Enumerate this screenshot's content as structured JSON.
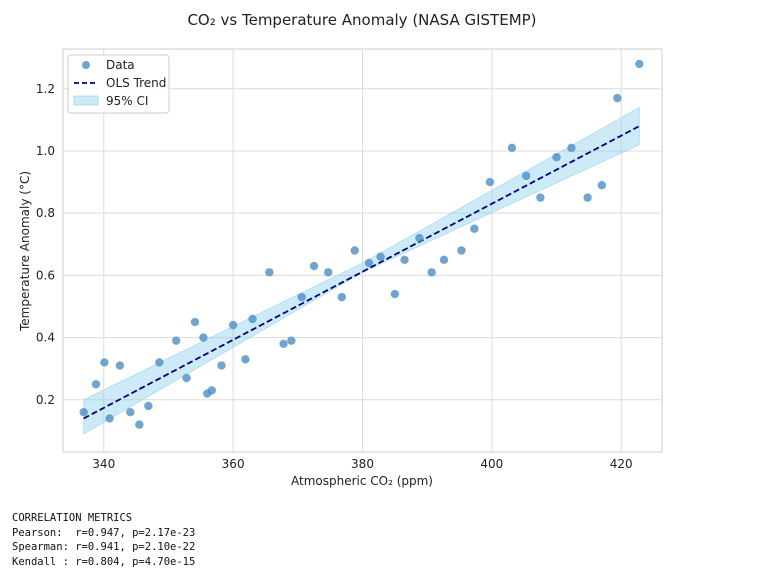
{
  "chart_data": {
    "type": "scatter",
    "title": "CO₂ vs Temperature Anomaly (NASA GISTEMP)",
    "xlabel": "Atmospheric CO₂ (ppm)",
    "ylabel": "Temperature Anomaly (°C)",
    "xlim": [
      333.7,
      426.3
    ],
    "ylim": [
      0.032,
      1.328
    ],
    "xticks": [
      340,
      360,
      380,
      400,
      420
    ],
    "yticks": [
      0.2,
      0.4,
      0.6,
      0.8,
      1.0,
      1.2
    ],
    "grid": true,
    "legend_position": "top-left",
    "series": [
      {
        "name": "Data",
        "color": "#4c8fc4",
        "x": [
          336.9,
          338.8,
          340.1,
          340.9,
          342.5,
          344.1,
          345.5,
          346.9,
          348.6,
          351.2,
          352.8,
          354.1,
          355.4,
          356.0,
          356.7,
          358.2,
          360.0,
          361.9,
          363.0,
          365.6,
          367.8,
          369.0,
          370.6,
          372.5,
          374.7,
          376.8,
          378.8,
          381.0,
          382.8,
          385.0,
          386.5,
          388.8,
          390.7,
          392.6,
          395.3,
          397.3,
          399.7,
          403.1,
          405.3,
          407.5,
          410.0,
          412.3,
          414.8,
          417.0,
          419.4,
          422.8
        ],
        "y": [
          0.16,
          0.25,
          0.32,
          0.14,
          0.31,
          0.16,
          0.12,
          0.18,
          0.32,
          0.39,
          0.27,
          0.45,
          0.4,
          0.22,
          0.23,
          0.31,
          0.44,
          0.33,
          0.46,
          0.61,
          0.38,
          0.39,
          0.53,
          0.63,
          0.61,
          0.53,
          0.68,
          0.64,
          0.66,
          0.54,
          0.65,
          0.72,
          0.61,
          0.65,
          0.68,
          0.75,
          0.9,
          1.01,
          0.92,
          0.85,
          0.98,
          1.01,
          0.85,
          0.89,
          1.17,
          1.28
        ]
      },
      {
        "name": "OLS Trend",
        "color": "#00007f",
        "line_style": "dashed",
        "x": [
          336.9,
          422.8
        ],
        "y": [
          0.14,
          1.08
        ]
      },
      {
        "name": "95% CI",
        "color": "#87ceeb",
        "x": [
          336.9,
          380.0,
          422.8
        ],
        "lower": [
          0.09,
          0.61,
          1.02
        ],
        "upper": [
          0.2,
          0.64,
          1.14
        ]
      }
    ]
  },
  "metrics": {
    "header": "CORRELATION METRICS",
    "pearson": "Pearson:  r=0.947, p=2.17e-23",
    "spearman": "Spearman: r=0.941, p=2.10e-22",
    "kendall": "Kendall : r=0.804, p=4.70e-15"
  }
}
